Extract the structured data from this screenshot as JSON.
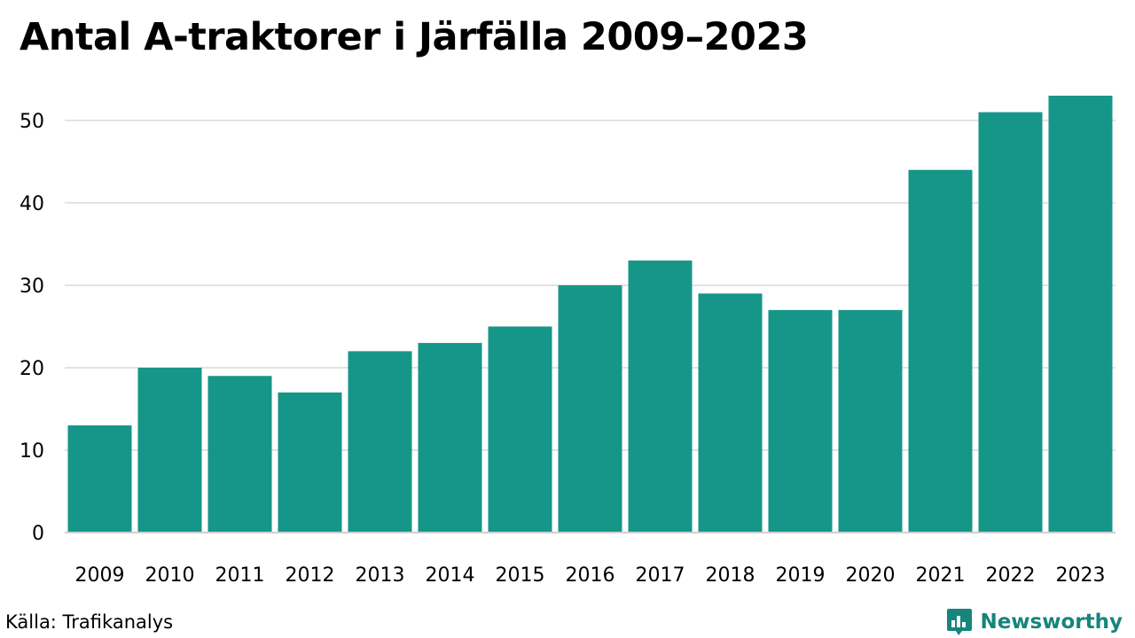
{
  "colors": {
    "bar": "#169688",
    "grid": "#e3e3e3",
    "axis": "#cfcfcf",
    "text": "#000000",
    "brand": "#16857b"
  },
  "footer": {
    "source": "Källa: Trafikanalys",
    "brand_name": "Newsworthy",
    "brand_icon": "bar-chart-speech-bubble-icon"
  },
  "chart_data": {
    "type": "bar",
    "title": "Antal A-traktorer i Järfälla 2009–2023",
    "xlabel": "",
    "ylabel": "",
    "categories": [
      "2009",
      "2010",
      "2011",
      "2012",
      "2013",
      "2014",
      "2015",
      "2016",
      "2017",
      "2018",
      "2019",
      "2020",
      "2021",
      "2022",
      "2023"
    ],
    "values": [
      13,
      20,
      19,
      17,
      22,
      23,
      25,
      30,
      33,
      29,
      27,
      27,
      44,
      51,
      53
    ],
    "ylim": [
      0,
      53
    ],
    "yticks": [
      "0",
      "10",
      "20",
      "30",
      "40",
      "50"
    ],
    "grid": true,
    "legend": "none"
  }
}
